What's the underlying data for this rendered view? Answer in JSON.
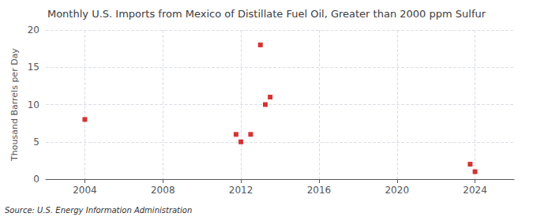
{
  "chart_data": {
    "type": "scatter",
    "title": "Monthly U.S. Imports from Mexico of Distillate Fuel Oil, Greater than 2000 ppm Sulfur",
    "ylabel": "Thousand Barrels per Day",
    "annotations": [
      "Source: U.S. Energy Information Administration"
    ],
    "x": [
      2004.0,
      2011.75,
      2012.0,
      2012.5,
      2013.0,
      2013.25,
      2013.5,
      2023.75,
      2024.0
    ],
    "values": [
      8.0,
      6.0,
      5.0,
      6.0,
      18.0,
      10.0,
      11.0,
      2.0,
      1.0
    ],
    "color": "#cc0000",
    "marker": "square",
    "xlim": [
      2002.0,
      2026.0
    ],
    "ylim": [
      0,
      20
    ],
    "xticks": [
      2004,
      2008,
      2012,
      2016,
      2020,
      2024
    ],
    "yticks": [
      0,
      5,
      10,
      15,
      20
    ],
    "grid": true
  }
}
